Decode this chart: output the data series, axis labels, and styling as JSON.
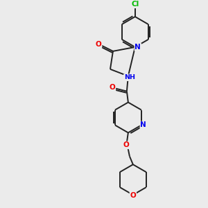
{
  "background_color": "#ebebeb",
  "bond_color": "#222222",
  "atom_colors": {
    "N": "#0000ee",
    "O": "#ee0000",
    "Cl": "#00bb00",
    "C": "#222222",
    "H": "#666666"
  },
  "figsize": [
    3.0,
    3.0
  ],
  "dpi": 100,
  "bond_lw": 1.4,
  "font_size": 7.5
}
